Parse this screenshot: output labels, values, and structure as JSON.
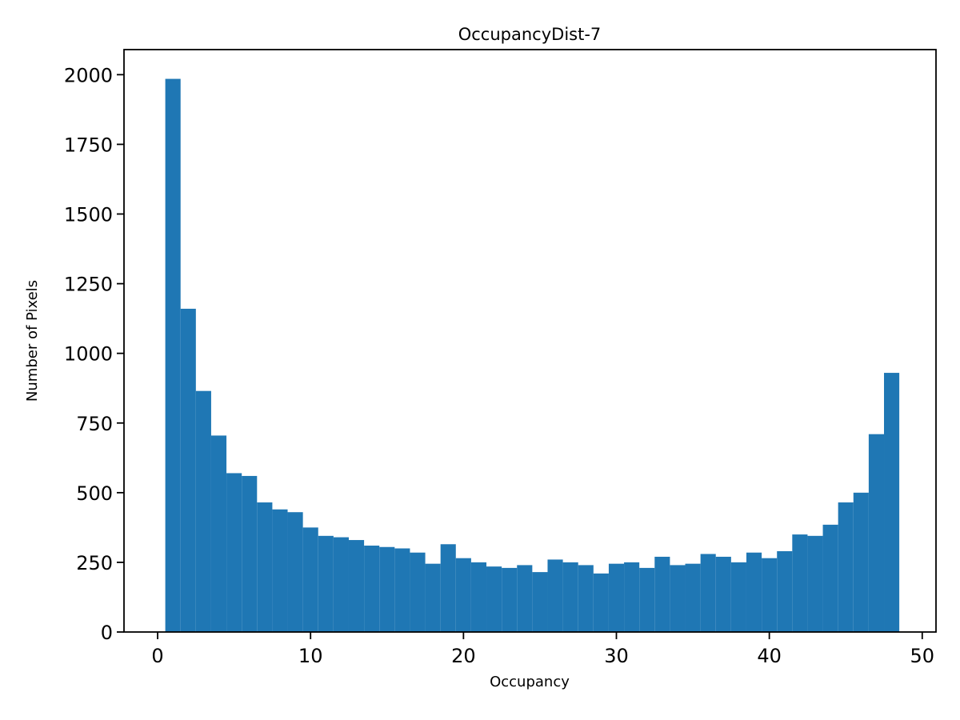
{
  "chart_data": {
    "type": "bar",
    "subtype": "histogram",
    "title": "OccupancyDist-7",
    "xlabel": "Occupancy",
    "ylabel": "Number of Pixels",
    "bin_start": 0.5,
    "bin_width": 1,
    "values": [
      1985,
      1160,
      865,
      705,
      570,
      560,
      465,
      440,
      430,
      375,
      345,
      340,
      330,
      310,
      305,
      300,
      285,
      245,
      315,
      265,
      250,
      235,
      230,
      240,
      215,
      260,
      250,
      240,
      210,
      245,
      250,
      230,
      270,
      240,
      245,
      280,
      270,
      250,
      285,
      265,
      290,
      350,
      345,
      385,
      465,
      500,
      710,
      930
    ],
    "xlim": [
      -2.2,
      50.9
    ],
    "ylim": [
      0,
      2090
    ],
    "xticks": [
      0,
      10,
      20,
      30,
      40,
      50
    ],
    "yticks": [
      0,
      250,
      500,
      750,
      1000,
      1250,
      1500,
      1750,
      2000
    ],
    "bar_color": "#1f77b4",
    "axis_color": "#000000",
    "background": "#ffffff",
    "grid": false,
    "legend_position": "none"
  }
}
